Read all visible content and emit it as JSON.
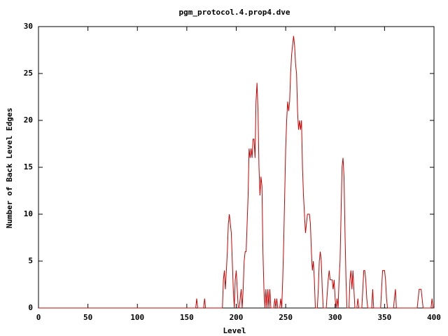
{
  "chart_data": {
    "type": "line",
    "title": "pgm_protocol.4.prop4.dve",
    "x_label": "Level",
    "y_label": "Number of Back Level Edges",
    "xlim": [
      0,
      400
    ],
    "ylim": [
      0,
      30
    ],
    "xticks": [
      0,
      50,
      100,
      150,
      200,
      250,
      300,
      350,
      400
    ],
    "yticks": [
      0,
      5,
      10,
      15,
      20,
      25,
      30
    ],
    "color": "#cc0000",
    "x": [
      0,
      159,
      160,
      161,
      167,
      168,
      169,
      186,
      187,
      188,
      189,
      190,
      191,
      192,
      193,
      194,
      195,
      196,
      197,
      198,
      199,
      200,
      201,
      202,
      203,
      204,
      205,
      206,
      207,
      208,
      209,
      210,
      211,
      212,
      213,
      214,
      215,
      216,
      217,
      218,
      219,
      220,
      221,
      222,
      223,
      224,
      225,
      226,
      227,
      228,
      229,
      230,
      231,
      232,
      233,
      234,
      235,
      238,
      239,
      240,
      241,
      242,
      244,
      245,
      246,
      247,
      248,
      249,
      250,
      251,
      252,
      253,
      254,
      255,
      256,
      257,
      258,
      259,
      260,
      261,
      262,
      263,
      264,
      265,
      266,
      267,
      268,
      269,
      270,
      271,
      272,
      273,
      274,
      275,
      276,
      277,
      278,
      279,
      280,
      281,
      282,
      283,
      284,
      285,
      286,
      287,
      288,
      289,
      290,
      291,
      293,
      294,
      295,
      296,
      297,
      298,
      299,
      300,
      301,
      302,
      303,
      304,
      305,
      306,
      307,
      308,
      309,
      310,
      311,
      312,
      313,
      314,
      315,
      316,
      317,
      318,
      319,
      320,
      321,
      322,
      323,
      324,
      325,
      326,
      327,
      328,
      329,
      330,
      331,
      332,
      333,
      334,
      335,
      336,
      337,
      338,
      339,
      340,
      341,
      342,
      343,
      344,
      345,
      346,
      347,
      348,
      349,
      350,
      351,
      352,
      353,
      355,
      356,
      357,
      358,
      359,
      360,
      361,
      362,
      363,
      365,
      366,
      367,
      368,
      369,
      370,
      383,
      384,
      385,
      386,
      387,
      388,
      389,
      390,
      396,
      397,
      398,
      399,
      400
    ],
    "y": [
      0,
      0,
      1,
      0,
      0,
      1,
      0,
      0,
      3,
      4,
      2,
      4,
      6,
      9,
      10,
      9,
      8,
      5,
      2,
      0,
      3,
      4,
      2,
      0,
      0,
      1,
      2,
      0,
      2,
      5,
      6,
      6,
      9,
      12,
      17,
      16,
      17,
      16,
      18,
      18,
      16,
      22,
      24,
      21,
      15,
      12,
      14,
      13,
      6,
      2,
      0,
      2,
      0,
      2,
      0,
      2,
      0,
      0,
      1,
      0,
      1,
      0,
      0,
      1,
      0,
      3,
      7,
      12,
      17,
      20,
      22,
      21,
      22,
      25,
      27,
      28,
      29,
      28,
      26,
      25,
      21,
      19,
      20,
      19,
      20,
      15,
      12,
      10,
      8,
      9,
      10,
      10,
      10,
      9,
      6,
      4,
      5,
      3,
      0,
      0,
      0,
      2,
      5,
      6,
      5,
      2,
      0,
      0,
      0,
      0,
      3,
      4,
      3,
      3,
      3,
      2,
      3,
      1,
      0,
      1,
      0,
      3,
      5,
      10,
      15,
      16,
      14,
      8,
      3,
      0,
      0,
      0,
      3,
      4,
      2,
      4,
      2,
      0,
      0,
      0,
      1,
      0,
      0,
      0,
      0,
      2,
      4,
      4,
      3,
      1,
      0,
      0,
      0,
      0,
      0,
      2,
      0,
      0,
      0,
      0,
      0,
      0,
      0,
      0,
      2,
      4,
      4,
      4,
      3,
      1,
      0,
      0,
      0,
      0,
      0,
      0,
      1,
      2,
      0,
      0,
      0,
      0,
      0,
      0,
      0,
      0,
      0,
      1,
      2,
      2,
      2,
      1,
      0,
      0,
      0,
      0,
      1,
      0,
      0
    ]
  }
}
